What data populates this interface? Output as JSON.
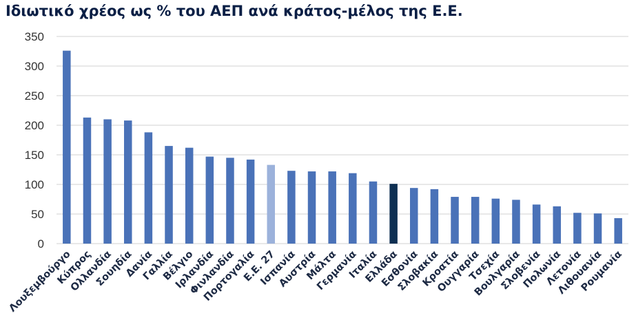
{
  "chart_data": {
    "type": "bar",
    "title": "Ιδιωτικό χρέος ως % του ΑΕΠ ανά κράτος-μέλος της Ε.Ε.",
    "xlabel": "",
    "ylabel": "",
    "ylim": [
      0,
      350
    ],
    "yticks": [
      0,
      50,
      100,
      150,
      200,
      250,
      300,
      350
    ],
    "grid": true,
    "legend": "none",
    "categories": [
      "Λουξεμβούργο",
      "Κύπρος",
      "Ολλανδία",
      "Σουηδία",
      "Δανία",
      "Γαλλία",
      "Βέλγιο",
      "Ιρλανδία",
      "Φινλανδία",
      "Πορτογαλία",
      "Ε.Ε. 27",
      "Ισπανία",
      "Αυστρία",
      "Μάλτα",
      "Γερμανία",
      "Ιταλία",
      "Ελλάδα",
      "Εσθονία",
      "Σλοβακία",
      "Κροατία",
      "Ουγγαρία",
      "Τσεχία",
      "Βουλγαρία",
      "Σλοβενία",
      "Πολωνία",
      "Λετονία",
      "Λιθουανία",
      "Ρουμανία"
    ],
    "values": [
      326,
      213,
      210,
      208,
      188,
      165,
      162,
      147,
      145,
      142,
      133,
      123,
      122,
      122,
      119,
      105,
      101,
      94,
      92,
      79,
      79,
      76,
      74,
      66,
      63,
      52,
      51,
      43
    ],
    "colors": {
      "default": "#4a72b8",
      "Ε.Ε. 27": "#9cb2db",
      "Ελλάδα": "#0e2f52"
    }
  }
}
